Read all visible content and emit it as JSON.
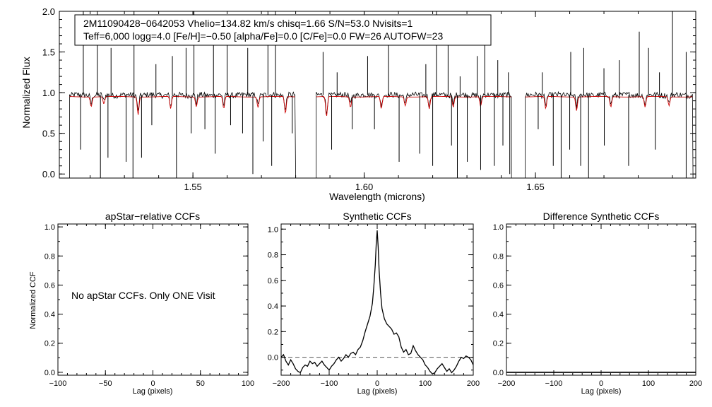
{
  "colors": {
    "observed": "#000000",
    "model": "#cc0000",
    "zero_line": "#555555"
  },
  "chart_data": [
    {
      "type": "line",
      "id": "spectrum",
      "title": "",
      "xlabel": "Wavelength (microns)",
      "ylabel": "Normalized Flux",
      "xlim": [
        1.511,
        1.6968
      ],
      "ylim": [
        -0.05,
        2.0
      ],
      "xticks": [
        "1.55",
        "1.60",
        "1.65"
      ],
      "yticks": [
        "0.0",
        "0.5",
        "1.0",
        "1.5",
        "2.0"
      ],
      "info_line1": "2M11090428−0642053  Vhelio=134.82 km/s  chisq=1.66  S/N=53.0  Nvisits=1",
      "info_line2": "Teff=6,000 logg=4.0 [Fe/H]=−0.50 [alpha/Fe]=0.0 [C/Fe]=0.0 FW=26 AUTOFW=23",
      "chips": [
        [
          1.514,
          1.58
        ],
        [
          1.586,
          1.643
        ],
        [
          1.647,
          1.696
        ]
      ],
      "continuum": 0.97,
      "emission_spikes": [
        {
          "x": 1.518,
          "y": 2.0
        },
        {
          "x": 1.5221,
          "y": 2.0
        },
        {
          "x": 1.5261,
          "y": 1.55
        },
        {
          "x": 1.5328,
          "y": 2.0
        },
        {
          "x": 1.5392,
          "y": 1.35
        },
        {
          "x": 1.544,
          "y": 1.45
        },
        {
          "x": 1.548,
          "y": 1.55
        },
        {
          "x": 1.5503,
          "y": 2.0
        },
        {
          "x": 1.556,
          "y": 1.9
        },
        {
          "x": 1.56,
          "y": 1.95
        },
        {
          "x": 1.566,
          "y": 1.55
        },
        {
          "x": 1.5719,
          "y": 2.0
        },
        {
          "x": 1.5741,
          "y": 2.0
        },
        {
          "x": 1.588,
          "y": 1.5
        },
        {
          "x": 1.5921,
          "y": 1.25
        },
        {
          "x": 1.601,
          "y": 1.45
        },
        {
          "x": 1.6071,
          "y": 1.6
        },
        {
          "x": 1.618,
          "y": 1.35
        },
        {
          "x": 1.6211,
          "y": 2.0
        },
        {
          "x": 1.6245,
          "y": 1.85
        },
        {
          "x": 1.628,
          "y": 1.2
        },
        {
          "x": 1.633,
          "y": 1.45
        },
        {
          "x": 1.6352,
          "y": 1.6
        },
        {
          "x": 1.639,
          "y": 1.4
        },
        {
          "x": 1.6421,
          "y": 1.25
        },
        {
          "x": 1.652,
          "y": 1.25
        },
        {
          "x": 1.6603,
          "y": 1.5
        },
        {
          "x": 1.6641,
          "y": 1.55
        },
        {
          "x": 1.67,
          "y": 1.3
        },
        {
          "x": 1.6745,
          "y": 1.4
        },
        {
          "x": 1.6803,
          "y": 1.75
        },
        {
          "x": 1.683,
          "y": 1.55
        },
        {
          "x": 1.6862,
          "y": 1.25
        },
        {
          "x": 1.69,
          "y": 2.0
        },
        {
          "x": 1.694,
          "y": 1.5
        }
      ],
      "absorption_spikes": [
        {
          "x": 1.5172,
          "y": 0.3
        },
        {
          "x": 1.523,
          "y": -0.05
        },
        {
          "x": 1.5252,
          "y": 0.2
        },
        {
          "x": 1.5305,
          "y": 0.15
        },
        {
          "x": 1.5325,
          "y": -0.05
        },
        {
          "x": 1.535,
          "y": 0.2
        },
        {
          "x": 1.538,
          "y": 0.6
        },
        {
          "x": 1.5452,
          "y": -0.05
        },
        {
          "x": 1.5495,
          "y": 0.5
        },
        {
          "x": 1.5535,
          "y": 0.55
        },
        {
          "x": 1.5565,
          "y": 0.25
        },
        {
          "x": 1.561,
          "y": 0.6
        },
        {
          "x": 1.5645,
          "y": 0.5
        },
        {
          "x": 1.5675,
          "y": 0.0
        },
        {
          "x": 1.5705,
          "y": 0.4
        },
        {
          "x": 1.573,
          "y": 0.1
        },
        {
          "x": 1.579,
          "y": 0.5
        },
        {
          "x": 1.5905,
          "y": 0.3
        },
        {
          "x": 1.5965,
          "y": 0.55
        },
        {
          "x": 1.603,
          "y": 0.55
        },
        {
          "x": 1.6102,
          "y": 0.15
        },
        {
          "x": 1.6162,
          "y": 0.25
        },
        {
          "x": 1.62,
          "y": 0.1
        },
        {
          "x": 1.6255,
          "y": 0.35
        },
        {
          "x": 1.6272,
          "y": -0.05
        },
        {
          "x": 1.6301,
          "y": 0.15
        },
        {
          "x": 1.634,
          "y": 0.05
        },
        {
          "x": 1.638,
          "y": 0.1
        },
        {
          "x": 1.6405,
          "y": 0.35
        },
        {
          "x": 1.6425,
          "y": 0.0
        },
        {
          "x": 1.6508,
          "y": 0.55
        },
        {
          "x": 1.6552,
          "y": 0.1
        },
        {
          "x": 1.6575,
          "y": -0.05
        },
        {
          "x": 1.66,
          "y": 0.3
        },
        {
          "x": 1.6632,
          "y": 0.1
        },
        {
          "x": 1.6655,
          "y": -0.05
        },
        {
          "x": 1.6701,
          "y": 0.35
        },
        {
          "x": 1.6772,
          "y": 0.1
        },
        {
          "x": 1.685,
          "y": 0.3
        },
        {
          "x": 1.694,
          "y": -0.05
        }
      ],
      "model_dips": [
        {
          "x": 1.5203,
          "y": 0.85
        },
        {
          "x": 1.524,
          "y": 0.88
        },
        {
          "x": 1.534,
          "y": 0.75
        },
        {
          "x": 1.5435,
          "y": 0.82
        },
        {
          "x": 1.551,
          "y": 0.85
        },
        {
          "x": 1.559,
          "y": 0.82
        },
        {
          "x": 1.569,
          "y": 0.84
        },
        {
          "x": 1.577,
          "y": 0.76
        },
        {
          "x": 1.589,
          "y": 0.72
        },
        {
          "x": 1.596,
          "y": 0.84
        },
        {
          "x": 1.605,
          "y": 0.82
        },
        {
          "x": 1.612,
          "y": 0.86
        },
        {
          "x": 1.619,
          "y": 0.82
        },
        {
          "x": 1.626,
          "y": 0.84
        },
        {
          "x": 1.634,
          "y": 0.85
        },
        {
          "x": 1.653,
          "y": 0.82
        },
        {
          "x": 1.662,
          "y": 0.8
        },
        {
          "x": 1.672,
          "y": 0.84
        },
        {
          "x": 1.682,
          "y": 0.84
        },
        {
          "x": 1.689,
          "y": 0.86
        }
      ]
    },
    {
      "type": "line",
      "id": "apstar_ccf",
      "title": "apStar−relative CCFs",
      "xlabel": "Lag (pixels)",
      "ylabel": "Normalized CCF",
      "xlim": [
        -100,
        100
      ],
      "ylim": [
        -0.02,
        1.02
      ],
      "xticks": [
        -100,
        -50,
        0,
        50,
        100
      ],
      "yticks": [
        "0.0",
        "0.2",
        "0.4",
        "0.6",
        "0.8",
        "1.0"
      ],
      "annotation": "No apStar CCFs.  Only ONE Visit",
      "series": []
    },
    {
      "type": "line",
      "id": "synthetic_ccf",
      "title": "Synthetic CCFs",
      "xlabel": "Lag (pixels)",
      "ylabel": "",
      "xlim": [
        -200,
        200
      ],
      "ylim": [
        -0.14,
        1.04
      ],
      "xticks": [
        -200,
        -100,
        0,
        100,
        200
      ],
      "yticks": [
        "0.0",
        "0.2",
        "0.4",
        "0.6",
        "0.8",
        "1.0"
      ],
      "zero_line": 0.0,
      "series": [
        {
          "name": "ccf",
          "x": [
            -200,
            -195,
            -190,
            -185,
            -180,
            -175,
            -170,
            -165,
            -160,
            -155,
            -150,
            -145,
            -140,
            -135,
            -130,
            -125,
            -120,
            -115,
            -110,
            -105,
            -100,
            -95,
            -90,
            -85,
            -80,
            -75,
            -70,
            -65,
            -60,
            -55,
            -50,
            -45,
            -40,
            -35,
            -30,
            -25,
            -20,
            -15,
            -10,
            -7,
            -4,
            -2,
            0,
            2,
            4,
            7,
            10,
            15,
            20,
            25,
            30,
            35,
            40,
            45,
            50,
            55,
            60,
            65,
            70,
            75,
            80,
            85,
            90,
            95,
            100,
            105,
            110,
            115,
            120,
            125,
            130,
            135,
            140,
            145,
            150,
            155,
            160,
            165,
            170,
            175,
            180,
            185,
            190,
            195,
            200
          ],
          "y": [
            0.0,
            0.02,
            -0.03,
            -0.06,
            -0.02,
            -0.05,
            -0.09,
            -0.11,
            -0.12,
            -0.08,
            -0.06,
            -0.07,
            -0.03,
            -0.05,
            -0.04,
            -0.07,
            -0.05,
            -0.03,
            -0.06,
            -0.08,
            -0.1,
            -0.07,
            -0.05,
            -0.02,
            0.0,
            -0.03,
            -0.01,
            0.02,
            0.0,
            0.03,
            0.04,
            0.02,
            0.06,
            0.08,
            0.13,
            0.2,
            0.26,
            0.32,
            0.42,
            0.55,
            0.72,
            0.88,
            0.99,
            0.86,
            0.68,
            0.5,
            0.38,
            0.3,
            0.26,
            0.24,
            0.22,
            0.18,
            0.19,
            0.16,
            0.08,
            0.04,
            0.06,
            0.02,
            0.03,
            0.09,
            0.05,
            0.02,
            0.0,
            -0.02,
            -0.06,
            -0.08,
            -0.11,
            -0.13,
            -0.12,
            -0.09,
            -0.07,
            -0.05,
            -0.08,
            -0.11,
            -0.09,
            -0.12,
            -0.1,
            -0.07,
            -0.03,
            0.0,
            -0.01,
            0.01,
            0.0,
            -0.02,
            -0.06
          ]
        }
      ]
    },
    {
      "type": "line",
      "id": "difference_ccf",
      "title": "Difference Synthetic CCFs",
      "xlabel": "Lag (pixels)",
      "ylabel": "",
      "xlim": [
        -200,
        200
      ],
      "ylim": [
        -0.02,
        1.02
      ],
      "xticks": [
        -200,
        -100,
        0,
        100,
        200
      ],
      "yticks": [
        "0.0",
        "0.2",
        "0.4",
        "0.6",
        "0.8",
        "1.0"
      ],
      "series": [
        {
          "name": "difference",
          "x": [
            -200,
            200
          ],
          "y": [
            0.0,
            0.0
          ]
        }
      ]
    }
  ]
}
